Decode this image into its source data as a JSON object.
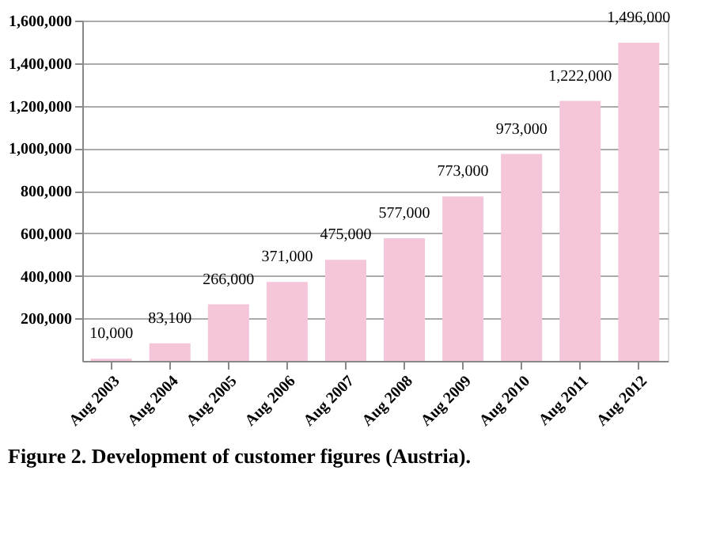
{
  "chart_data": {
    "type": "bar",
    "title": "Figure 2. Development of customer figures (Austria).",
    "categories": [
      "Aug 2003",
      "Aug 2004",
      "Aug 2005",
      "Aug 2006",
      "Aug 2007",
      "Aug 2008",
      "Aug 2009",
      "Aug 2010",
      "Aug 2011",
      "Aug 2012"
    ],
    "values": [
      10000,
      83100,
      266000,
      371000,
      475000,
      577000,
      773000,
      973000,
      1222000,
      1496000
    ],
    "color": "#f5c6da",
    "value_labels": [
      "10,000",
      "83,100",
      "266,000",
      "371,000",
      "475,000",
      "577,000",
      "773,000",
      "973,000",
      "1,222,000",
      "1,496,000"
    ],
    "ylim": [
      0,
      1600000
    ],
    "yticks": [
      {
        "value": 200000,
        "label": "200,000"
      },
      {
        "value": 400000,
        "label": "400,000"
      },
      {
        "value": 600000,
        "label": "600,000"
      },
      {
        "value": 800000,
        "label": "800,000"
      },
      {
        "value": 1000000,
        "label": "1,000,000"
      },
      {
        "value": 1200000,
        "label": "1,200,000"
      },
      {
        "value": 1400000,
        "label": "1,400,000"
      },
      {
        "value": 1600000,
        "label": "1,600,000"
      }
    ],
    "grid": "y"
  }
}
